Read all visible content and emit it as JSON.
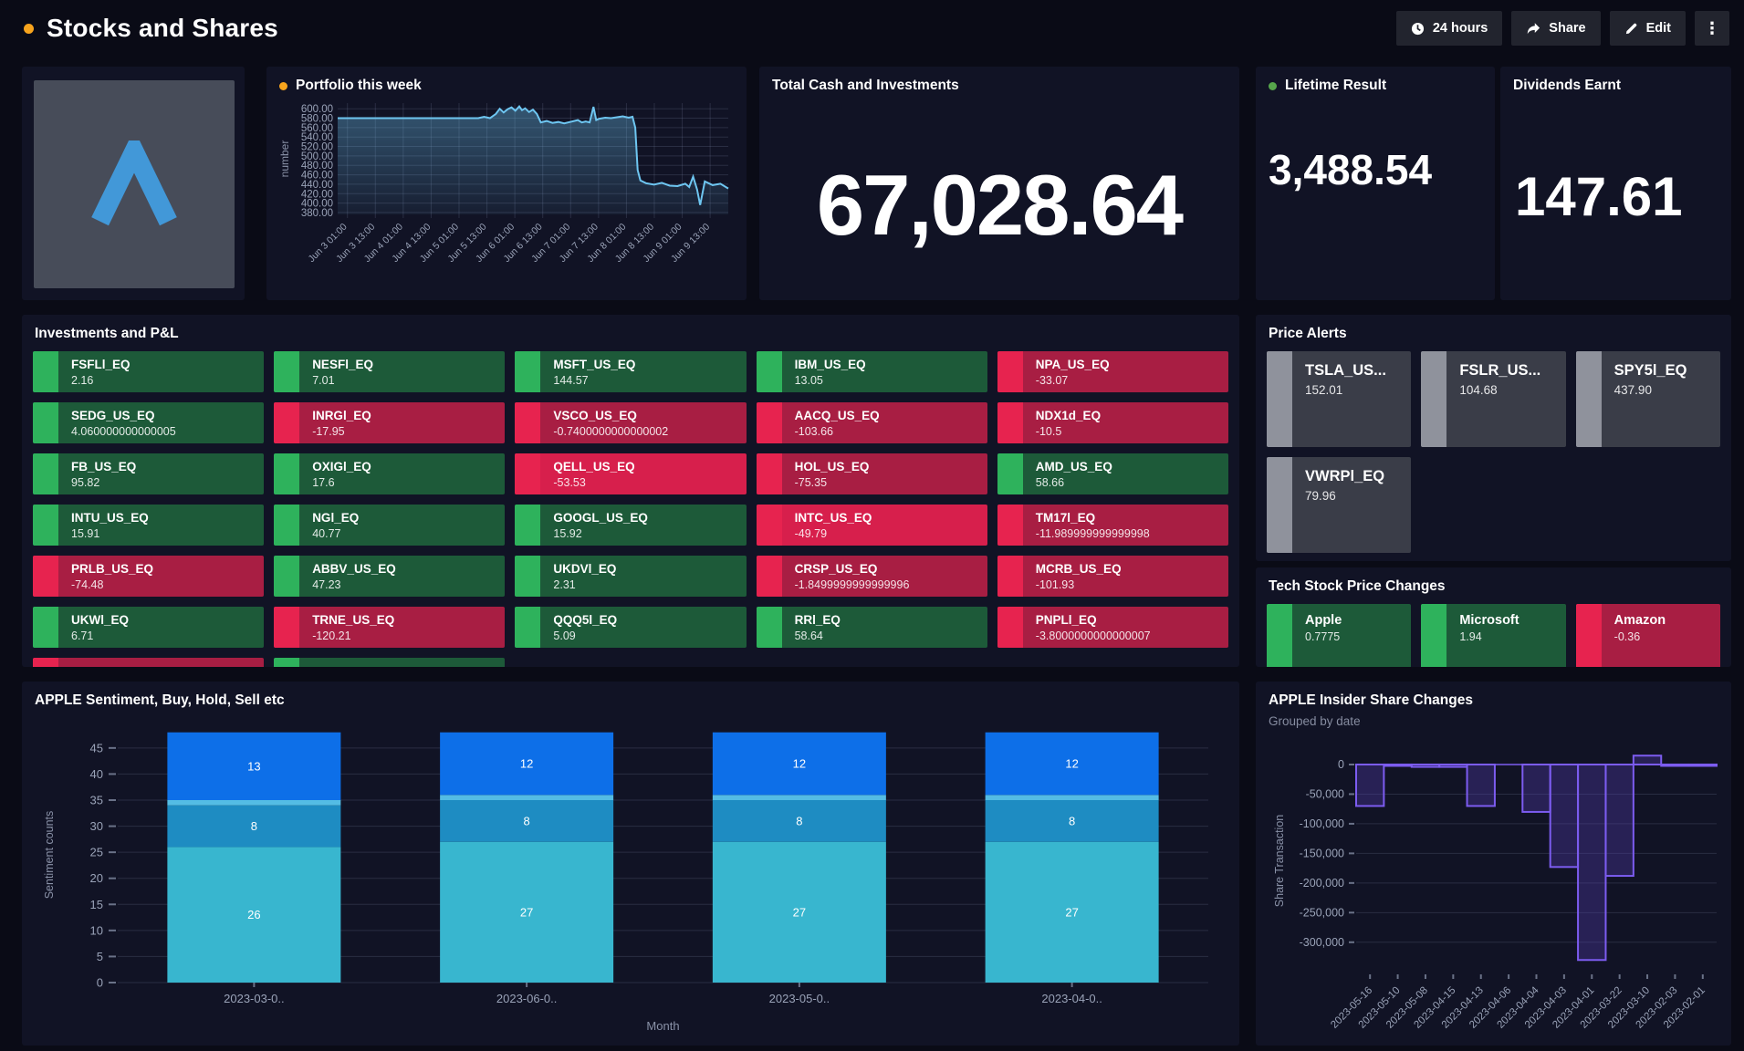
{
  "header": {
    "title": "Stocks and Shares",
    "accent_dot_color": "#f7a41d",
    "buttons": {
      "time_range": "24 hours",
      "share": "Share",
      "edit": "Edit"
    }
  },
  "panels": {
    "portfolio": {
      "title": "Portfolio this week",
      "dot_color": "#f7a41d"
    },
    "total_cash": {
      "title": "Total Cash and Investments",
      "value": "67,028.64"
    },
    "lifetime": {
      "title": "Lifetime Result",
      "value": "3,488.54",
      "dot_color": "#56a64b"
    },
    "dividends": {
      "title": "Dividends Earnt",
      "value": "147.61"
    },
    "investments": {
      "title": "Investments and P&L",
      "tiles": [
        {
          "symbol": "FSFLl_EQ",
          "value": "2.16",
          "trend": "up"
        },
        {
          "symbol": "NESFl_EQ",
          "value": "7.01",
          "trend": "up"
        },
        {
          "symbol": "MSFT_US_EQ",
          "value": "144.57",
          "trend": "up"
        },
        {
          "symbol": "IBM_US_EQ",
          "value": "13.05",
          "trend": "up"
        },
        {
          "symbol": "NPA_US_EQ",
          "value": "-33.07",
          "trend": "down"
        },
        {
          "symbol": "SEDG_US_EQ",
          "value": "4.060000000000005",
          "trend": "up"
        },
        {
          "symbol": "INRGl_EQ",
          "value": "-17.95",
          "trend": "down"
        },
        {
          "symbol": "VSCO_US_EQ",
          "value": "-0.7400000000000002",
          "trend": "down"
        },
        {
          "symbol": "AACQ_US_EQ",
          "value": "-103.66",
          "trend": "down"
        },
        {
          "symbol": "NDX1d_EQ",
          "value": "-10.5",
          "trend": "down"
        },
        {
          "symbol": "FB_US_EQ",
          "value": "95.82",
          "trend": "up"
        },
        {
          "symbol": "OXIGl_EQ",
          "value": "17.6",
          "trend": "up"
        },
        {
          "symbol": "QELL_US_EQ",
          "value": "-53.53",
          "trend": "down-bright"
        },
        {
          "symbol": "HOL_US_EQ",
          "value": "-75.35",
          "trend": "down"
        },
        {
          "symbol": "AMD_US_EQ",
          "value": "58.66",
          "trend": "up"
        },
        {
          "symbol": "INTU_US_EQ",
          "value": "15.91",
          "trend": "up"
        },
        {
          "symbol": "NGl_EQ",
          "value": "40.77",
          "trend": "up"
        },
        {
          "symbol": "GOOGL_US_EQ",
          "value": "15.92",
          "trend": "up"
        },
        {
          "symbol": "INTC_US_EQ",
          "value": "-49.79",
          "trend": "down-bright"
        },
        {
          "symbol": "TM17l_EQ",
          "value": "-11.989999999999998",
          "trend": "down"
        },
        {
          "symbol": "PRLB_US_EQ",
          "value": "-74.48",
          "trend": "down"
        },
        {
          "symbol": "ABBV_US_EQ",
          "value": "47.23",
          "trend": "up"
        },
        {
          "symbol": "UKDVl_EQ",
          "value": "2.31",
          "trend": "up"
        },
        {
          "symbol": "CRSP_US_EQ",
          "value": "-1.8499999999999996",
          "trend": "down"
        },
        {
          "symbol": "MCRB_US_EQ",
          "value": "-101.93",
          "trend": "down"
        },
        {
          "symbol": "UKWl_EQ",
          "value": "6.71",
          "trend": "up"
        },
        {
          "symbol": "TRNE_US_EQ",
          "value": "-120.21",
          "trend": "down"
        },
        {
          "symbol": "QQQ5l_EQ",
          "value": "5.09",
          "trend": "up"
        },
        {
          "symbol": "RRl_EQ",
          "value": "58.64",
          "trend": "up"
        },
        {
          "symbol": "PNPLl_EQ",
          "value": "-3.8000000000000007",
          "trend": "down"
        }
      ],
      "clipped_tiles": [
        "down",
        "up"
      ]
    },
    "price_alerts": {
      "title": "Price Alerts",
      "tiles": [
        {
          "symbol": "TSLA_US...",
          "value": "152.01"
        },
        {
          "symbol": "FSLR_US...",
          "value": "104.68"
        },
        {
          "symbol": "SPY5l_EQ",
          "value": "437.90"
        },
        {
          "symbol": "VWRPl_EQ",
          "value": "79.96"
        }
      ]
    },
    "tech_changes": {
      "title": "Tech Stock Price Changes",
      "tiles": [
        {
          "symbol": "Apple",
          "value": "0.7775",
          "trend": "up"
        },
        {
          "symbol": "Microsoft",
          "value": "1.94",
          "trend": "up"
        },
        {
          "symbol": "Amazon",
          "value": "-0.36",
          "trend": "down"
        }
      ]
    },
    "sentiment": {
      "title": "APPLE Sentiment, Buy, Hold, Sell etc"
    },
    "insider": {
      "title": "APPLE Insider Share Changes",
      "subtitle": "Grouped by date"
    }
  },
  "chart_data": [
    {
      "type": "line",
      "title": "Portfolio this week",
      "ylabel": "number",
      "ylim": [
        376,
        612
      ],
      "yticks": [
        380,
        400,
        420,
        440,
        460,
        480,
        500,
        520,
        540,
        560,
        580,
        600
      ],
      "xticklabels": [
        "Jun 3 01:00",
        "Jun 3 13:00",
        "Jun 4 01:00",
        "Jun 4 13:00",
        "Jun 5 01:00",
        "Jun 5 13:00",
        "Jun 6 01:00",
        "Jun 6 13:00",
        "Jun 7 01:00",
        "Jun 7 13:00",
        "Jun 8 01:00",
        "Jun 8 13:00",
        "Jun 9 01:00",
        "Jun 9 13:00"
      ],
      "grid": true,
      "series": [
        {
          "name": "number",
          "color": "#6ec6f1",
          "points": [
            [
              0,
              580
            ],
            [
              0.36,
              580
            ],
            [
              0.375,
              583
            ],
            [
              0.39,
              580
            ],
            [
              0.405,
              589
            ],
            [
              0.415,
              600
            ],
            [
              0.425,
              592
            ],
            [
              0.435,
              599
            ],
            [
              0.445,
              603
            ],
            [
              0.455,
              596
            ],
            [
              0.465,
              605
            ],
            [
              0.472,
              597
            ],
            [
              0.48,
              601
            ],
            [
              0.49,
              593
            ],
            [
              0.5,
              598
            ],
            [
              0.51,
              589
            ],
            [
              0.52,
              571
            ],
            [
              0.535,
              574
            ],
            [
              0.55,
              570
            ],
            [
              0.565,
              572
            ],
            [
              0.58,
              569
            ],
            [
              0.6,
              573
            ],
            [
              0.615,
              576
            ],
            [
              0.625,
              571
            ],
            [
              0.635,
              573
            ],
            [
              0.645,
              571
            ],
            [
              0.655,
              604
            ],
            [
              0.662,
              576
            ],
            [
              0.67,
              579
            ],
            [
              0.685,
              581
            ],
            [
              0.7,
              580
            ],
            [
              0.715,
              582
            ],
            [
              0.73,
              584
            ],
            [
              0.745,
              581
            ],
            [
              0.755,
              583
            ],
            [
              0.762,
              560
            ],
            [
              0.768,
              470
            ],
            [
              0.775,
              448
            ],
            [
              0.79,
              442
            ],
            [
              0.81,
              439
            ],
            [
              0.83,
              443
            ],
            [
              0.85,
              437
            ],
            [
              0.87,
              436
            ],
            [
              0.89,
              441
            ],
            [
              0.9,
              434
            ],
            [
              0.91,
              456
            ],
            [
              0.92,
              429
            ],
            [
              0.928,
              396
            ],
            [
              0.94,
              446
            ],
            [
              0.96,
              438
            ],
            [
              0.98,
              441
            ],
            [
              1,
              431
            ]
          ]
        }
      ]
    },
    {
      "type": "stacked-bar",
      "title": "APPLE Sentiment, Buy, Hold, Sell etc",
      "xlabel": "Month",
      "ylabel": "Sentiment counts",
      "ylim": [
        0,
        49
      ],
      "yticks": [
        0,
        5,
        10,
        15,
        20,
        25,
        30,
        35,
        40,
        45
      ],
      "categories": [
        "2023-03-0..",
        "2023-06-0..",
        "2023-05-0..",
        "2023-04-0.."
      ],
      "series": [
        {
          "name": "segment-bottom",
          "color": "#38b6cf",
          "values": [
            26,
            27,
            27,
            27
          ],
          "labeled": true
        },
        {
          "name": "segment-mid",
          "color": "#1e8cc2",
          "values": [
            8,
            8,
            8,
            8
          ],
          "labeled": true
        },
        {
          "name": "segment-sliver",
          "color": "#54bce4",
          "values": [
            1,
            1,
            1,
            1
          ],
          "labeled": false
        },
        {
          "name": "segment-top",
          "color": "#0d6fe8",
          "values": [
            13,
            12,
            12,
            12
          ],
          "labeled": true
        }
      ]
    },
    {
      "type": "bar",
      "title": "APPLE Insider Share Changes",
      "subtitle": "Grouped by date",
      "ylabel": "Share Transaction",
      "ylim": [
        -345000,
        20000
      ],
      "yticks": [
        {
          "v": 0,
          "label": "0"
        },
        {
          "v": -50000,
          "label": "-50,000"
        },
        {
          "v": -100000,
          "label": "-100,000"
        },
        {
          "v": -150000,
          "label": "-150,000"
        },
        {
          "v": -200000,
          "label": "-200,000"
        },
        {
          "v": -250000,
          "label": "-250,000"
        },
        {
          "v": -300000,
          "label": "-300,000"
        }
      ],
      "categories": [
        "2023-05-16",
        "2023-05-10",
        "2023-05-08",
        "2023-04-15",
        "2023-04-13",
        "2023-04-06",
        "2023-04-04",
        "2023-04-03",
        "2023-04-01",
        "2023-03-22",
        "2023-03-10",
        "2023-02-03",
        "2023-02-01"
      ],
      "values": [
        -70000,
        -2000,
        -4000,
        -4000,
        -70000,
        null,
        -80000,
        -173000,
        -330000,
        -188000,
        15000,
        -2000,
        -1000
      ],
      "color": "#7c5cf0",
      "fill": "rgba(82,60,174,0.35)"
    }
  ]
}
